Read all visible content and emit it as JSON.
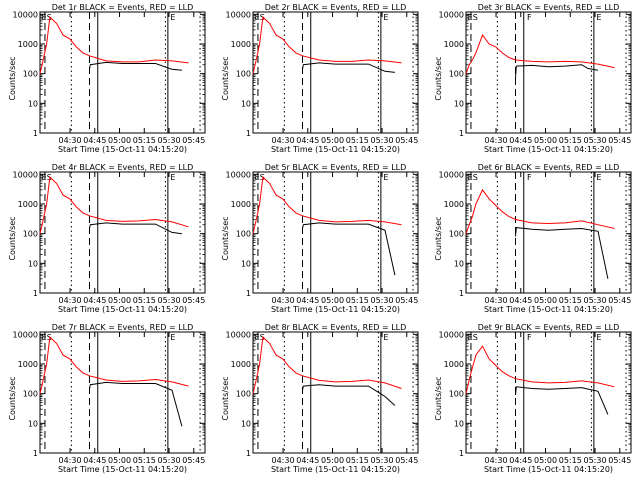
{
  "figure": {
    "x_ticks": [
      "04:30",
      "04:45",
      "05:00",
      "05:15",
      "05:30",
      "05:45"
    ],
    "y_ticks": [
      "1",
      "10",
      "100",
      "1000",
      "10000"
    ],
    "xlabel": "Start Time (15-Oct-11 04:15:20)",
    "ylabel": "Counts/sec"
  },
  "chart_data": [
    {
      "type": "line",
      "title": "Det 1r BLACK = Events, RED = LLD",
      "markers": [
        "ES",
        "E"
      ],
      "series": [
        {
          "color": "#ff0000",
          "t": [
            0,
            2,
            4,
            6,
            10,
            14,
            18,
            22,
            26,
            30,
            40,
            50,
            60,
            70,
            80,
            90
          ],
          "values": [
            100,
            300,
            1000,
            8000,
            5000,
            2000,
            1500,
            800,
            500,
            400,
            270,
            250,
            250,
            290,
            270,
            230
          ]
        },
        {
          "color": "#000000",
          "t": [
            30,
            30.5,
            40,
            50,
            60,
            70,
            80,
            86
          ],
          "values": [
            140,
            200,
            240,
            220,
            220,
            220,
            140,
            130
          ]
        }
      ]
    },
    {
      "type": "line",
      "title": "Det 2r BLACK = Events, RED = LLD",
      "markers": [
        "ES",
        "E"
      ],
      "series": [
        {
          "color": "#ff0000",
          "t": [
            0,
            2,
            4,
            6,
            10,
            14,
            18,
            22,
            26,
            30,
            40,
            50,
            60,
            70,
            80,
            90
          ],
          "values": [
            100,
            300,
            1000,
            8000,
            5000,
            2000,
            1500,
            800,
            500,
            400,
            290,
            260,
            260,
            290,
            270,
            230
          ]
        },
        {
          "color": "#000000",
          "t": [
            30,
            30.5,
            40,
            50,
            60,
            70,
            80,
            86
          ],
          "values": [
            140,
            200,
            230,
            210,
            210,
            210,
            120,
            110
          ]
        }
      ]
    },
    {
      "type": "line",
      "title": "Det 3r BLACK = Events, RED = LLD",
      "markers": [
        "ES",
        "F",
        "E"
      ],
      "series": [
        {
          "color": "#ff0000",
          "t": [
            0,
            2,
            4,
            6,
            10,
            14,
            18,
            22,
            26,
            30,
            40,
            50,
            60,
            70,
            80,
            90
          ],
          "values": [
            100,
            200,
            300,
            500,
            2000,
            1000,
            800,
            500,
            350,
            290,
            260,
            250,
            260,
            250,
            210,
            160
          ]
        },
        {
          "color": "#000000",
          "t": [
            30,
            30.5,
            40,
            50,
            60,
            70,
            74,
            80
          ],
          "values": [
            70,
            180,
            190,
            170,
            180,
            200,
            150,
            130
          ]
        }
      ]
    },
    {
      "type": "line",
      "title": "Det 4r BLACK = Events, RED = LLD",
      "markers": [
        "ES",
        "E"
      ],
      "series": [
        {
          "color": "#ff0000",
          "t": [
            0,
            2,
            4,
            6,
            10,
            14,
            18,
            22,
            26,
            30,
            40,
            50,
            60,
            70,
            80,
            90
          ],
          "values": [
            100,
            300,
            1000,
            8000,
            5000,
            2000,
            1500,
            800,
            500,
            400,
            280,
            260,
            270,
            300,
            250,
            170
          ]
        },
        {
          "color": "#000000",
          "t": [
            30,
            30.5,
            40,
            50,
            60,
            70,
            80,
            86
          ],
          "values": [
            150,
            200,
            230,
            210,
            210,
            210,
            110,
            100
          ]
        }
      ]
    },
    {
      "type": "line",
      "title": "Det 5r BLACK = Events, RED = LLD",
      "markers": [
        "ES",
        "E"
      ],
      "series": [
        {
          "color": "#ff0000",
          "t": [
            0,
            2,
            4,
            6,
            10,
            14,
            18,
            22,
            26,
            30,
            40,
            50,
            60,
            70,
            80,
            90
          ],
          "values": [
            100,
            300,
            1000,
            8000,
            5000,
            2000,
            1500,
            800,
            500,
            400,
            280,
            250,
            260,
            280,
            250,
            200
          ]
        },
        {
          "color": "#000000",
          "t": [
            30,
            30.5,
            40,
            50,
            60,
            70,
            80,
            86
          ],
          "values": [
            150,
            200,
            230,
            210,
            210,
            210,
            130,
            4
          ]
        }
      ]
    },
    {
      "type": "line",
      "title": "Det 6r BLACK = Events, RED = LLD",
      "markers": [
        "ES",
        "F",
        "E"
      ],
      "series": [
        {
          "color": "#ff0000",
          "t": [
            0,
            2,
            4,
            6,
            10,
            14,
            18,
            22,
            26,
            30,
            40,
            50,
            60,
            70,
            80,
            90
          ],
          "values": [
            100,
            200,
            400,
            1000,
            3000,
            1500,
            900,
            550,
            380,
            300,
            230,
            220,
            230,
            270,
            200,
            150
          ]
        },
        {
          "color": "#000000",
          "t": [
            30,
            30.5,
            40,
            50,
            60,
            70,
            80,
            86
          ],
          "values": [
            80,
            160,
            140,
            130,
            140,
            150,
            120,
            3
          ]
        }
      ]
    },
    {
      "type": "line",
      "title": "Det 7r BLACK = Events, RED = LLD",
      "markers": [
        "ES",
        "E"
      ],
      "series": [
        {
          "color": "#ff0000",
          "t": [
            0,
            2,
            4,
            6,
            10,
            14,
            18,
            22,
            26,
            30,
            40,
            50,
            60,
            70,
            80,
            90
          ],
          "values": [
            100,
            300,
            1000,
            8000,
            5000,
            2000,
            1500,
            800,
            500,
            400,
            290,
            260,
            270,
            300,
            250,
            180
          ]
        },
        {
          "color": "#000000",
          "t": [
            30,
            30.5,
            40,
            50,
            60,
            70,
            80,
            86
          ],
          "values": [
            140,
            200,
            240,
            220,
            220,
            220,
            130,
            8
          ]
        }
      ]
    },
    {
      "type": "line",
      "title": "Det 8r BLACK = Events, RED = LLD",
      "markers": [
        "ES",
        "E"
      ],
      "series": [
        {
          "color": "#ff0000",
          "t": [
            0,
            2,
            4,
            6,
            10,
            14,
            18,
            22,
            26,
            30,
            40,
            50,
            60,
            70,
            80,
            90
          ],
          "values": [
            100,
            300,
            1000,
            8000,
            5000,
            2000,
            1500,
            800,
            500,
            400,
            280,
            250,
            260,
            290,
            230,
            150
          ]
        },
        {
          "color": "#000000",
          "t": [
            30,
            30.5,
            40,
            50,
            60,
            70,
            80,
            86
          ],
          "values": [
            130,
            180,
            200,
            180,
            180,
            180,
            80,
            40
          ]
        }
      ]
    },
    {
      "type": "line",
      "title": "Det 9r BLACK = Events, RED = LLD",
      "markers": [
        "ES",
        "F",
        "E"
      ],
      "series": [
        {
          "color": "#ff0000",
          "t": [
            0,
            2,
            4,
            6,
            10,
            14,
            18,
            22,
            26,
            30,
            40,
            50,
            60,
            70,
            80,
            90
          ],
          "values": [
            100,
            300,
            800,
            2000,
            4000,
            1500,
            900,
            550,
            400,
            320,
            250,
            230,
            240,
            270,
            230,
            170
          ]
        },
        {
          "color": "#000000",
          "t": [
            30,
            30.5,
            40,
            50,
            60,
            70,
            80,
            86
          ],
          "values": [
            90,
            170,
            150,
            140,
            150,
            160,
            120,
            20
          ]
        }
      ]
    }
  ]
}
